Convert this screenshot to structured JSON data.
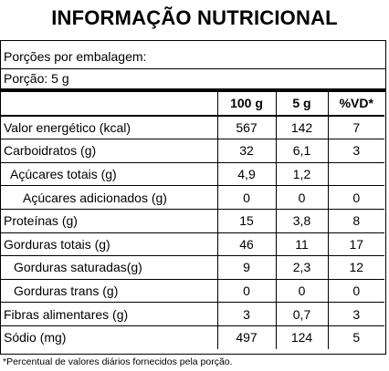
{
  "title": "INFORMAÇÃO NUTRICIONAL",
  "portions_per_package": "Porções por embalagem:",
  "portion": "Porção: 5 g",
  "columns": [
    "100 g",
    "5 g",
    "%VD*"
  ],
  "rows": [
    {
      "name": "Valor energético (kcal)",
      "level": 0,
      "v100": "567",
      "v5": "142",
      "vd": "7"
    },
    {
      "name": "Carboidratos (g)",
      "level": 0,
      "v100": "32",
      "v5": "6,1",
      "vd": "3"
    },
    {
      "name": "Açúcares totais (g)",
      "level": 1,
      "v100": "4,9",
      "v5": "1,2",
      "vd": ""
    },
    {
      "name": "Açúcares adicionados (g)",
      "level": 2,
      "v100": "0",
      "v5": "0",
      "vd": "0"
    },
    {
      "name": "Proteínas (g)",
      "level": 0,
      "v100": "15",
      "v5": "3,8",
      "vd": "8"
    },
    {
      "name": "Gorduras totais (g)",
      "level": 0,
      "v100": "46",
      "v5": "11",
      "vd": "17"
    },
    {
      "name": "Gorduras saturadas(g)",
      "level": 1,
      "v100": "9",
      "v5": "2,3",
      "vd": "12"
    },
    {
      "name": "Gorduras trans (g)",
      "level": 1,
      "v100": "0",
      "v5": "0",
      "vd": "0"
    },
    {
      "name": "Fibras alimentares (g)",
      "level": 0,
      "v100": "3",
      "v5": "0,7",
      "vd": "3"
    },
    {
      "name": "Sódio (mg)",
      "level": 0,
      "v100": "497",
      "v5": "124",
      "vd": "5"
    }
  ],
  "footnote": "*Percentual de valores diários fornecidos pela porção."
}
